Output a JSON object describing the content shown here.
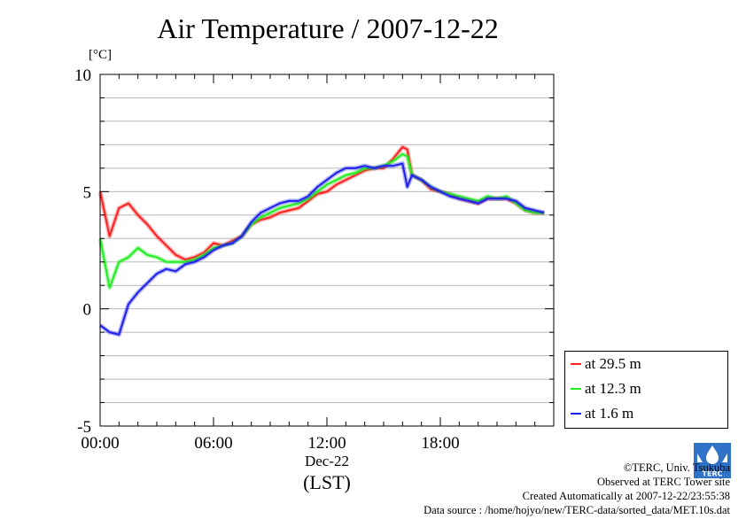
{
  "page": {
    "title": "Air Temperature / 2007-12-22",
    "unit": "[°C]",
    "date_label": "Dec-22",
    "tz_label": "(LST)"
  },
  "credits": {
    "line1": "©TERC, Univ. Tsukuba",
    "line2": "Observed at TERC Tower site",
    "line3": "Created Automatically at 2007-12-22/23:55:38",
    "line4": "Data source : /home/hojyo/new/TERC-data/sorted_data/MET.10s.dat"
  },
  "logo": {
    "text": "TERC"
  },
  "chart_data": {
    "type": "line",
    "title": "Air Temperature / 2007-12-22",
    "xlabel": "(LST)",
    "ylabel": "[°C]",
    "xlim": [
      0,
      24
    ],
    "ylim": [
      -5,
      10
    ],
    "x_tick_values": [
      0,
      6,
      12,
      18
    ],
    "x_tick_labels": [
      "00:00",
      "06:00",
      "12:00",
      "18:00"
    ],
    "y_tick_values": [
      -5,
      0,
      5,
      10
    ],
    "y_tick_labels": [
      "-5",
      "0",
      "5",
      "10"
    ],
    "grid": "horizontal, every 1 °C",
    "legend": "right, below plot",
    "x": [
      0,
      0.5,
      1,
      1.5,
      2,
      2.5,
      3,
      3.5,
      4,
      4.5,
      5,
      5.5,
      6,
      6.5,
      7,
      7.5,
      8,
      8.5,
      9,
      9.5,
      10,
      10.5,
      11,
      11.5,
      12,
      12.5,
      13,
      13.5,
      14,
      14.5,
      15,
      15.5,
      16,
      16.25,
      16.5,
      17,
      17.5,
      18,
      18.5,
      19,
      19.5,
      20,
      20.5,
      21,
      21.5,
      22,
      22.5,
      23,
      23.5
    ],
    "series": [
      {
        "name": "at 29.5 m",
        "color": "#ff2020",
        "values": [
          5.0,
          3.1,
          4.3,
          4.5,
          4.0,
          3.6,
          3.1,
          2.7,
          2.3,
          2.1,
          2.2,
          2.4,
          2.8,
          2.7,
          2.9,
          3.1,
          3.6,
          3.8,
          3.9,
          4.1,
          4.2,
          4.3,
          4.6,
          4.9,
          5.0,
          5.3,
          5.5,
          5.7,
          5.9,
          6.0,
          6.0,
          6.4,
          6.9,
          6.8,
          5.7,
          5.5,
          5.1,
          5.0,
          4.9,
          4.7,
          4.6,
          4.5,
          4.7,
          4.7,
          4.7,
          4.5,
          4.2,
          4.1,
          4.1
        ]
      },
      {
        "name": "at 12.3 m",
        "color": "#20ee20",
        "values": [
          3.0,
          0.9,
          2.0,
          2.2,
          2.6,
          2.3,
          2.2,
          2.0,
          2.0,
          2.0,
          2.1,
          2.3,
          2.6,
          2.7,
          2.8,
          3.1,
          3.6,
          3.9,
          4.1,
          4.3,
          4.4,
          4.5,
          4.7,
          5.0,
          5.3,
          5.5,
          5.7,
          5.8,
          6.0,
          6.0,
          6.1,
          6.3,
          6.6,
          6.5,
          5.7,
          5.5,
          5.2,
          5.0,
          4.9,
          4.8,
          4.7,
          4.6,
          4.8,
          4.7,
          4.8,
          4.5,
          4.2,
          4.1,
          4.1
        ]
      },
      {
        "name": "at 1.6 m",
        "color": "#2020ee",
        "values": [
          -0.7,
          -1.0,
          -1.1,
          0.2,
          0.7,
          1.1,
          1.5,
          1.7,
          1.6,
          1.9,
          2.0,
          2.2,
          2.5,
          2.7,
          2.8,
          3.1,
          3.7,
          4.1,
          4.3,
          4.5,
          4.6,
          4.6,
          4.8,
          5.2,
          5.5,
          5.8,
          6.0,
          6.0,
          6.1,
          6.0,
          6.1,
          6.1,
          6.2,
          5.2,
          5.7,
          5.5,
          5.2,
          5.0,
          4.8,
          4.7,
          4.6,
          4.5,
          4.7,
          4.7,
          4.7,
          4.6,
          4.3,
          4.2,
          4.1
        ]
      }
    ]
  }
}
